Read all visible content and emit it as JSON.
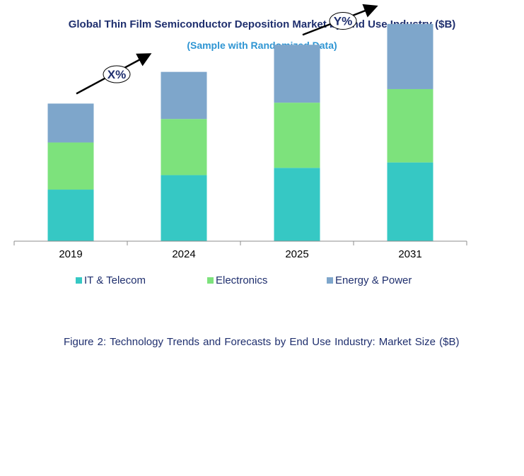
{
  "chart_data": {
    "type": "bar",
    "stacked": true,
    "title": "Global Thin Film Semiconductor Deposition Market by End Use Industry ($B)",
    "subtitle": "(Sample with Randomized Data)",
    "categories": [
      "2019",
      "2024",
      "2025",
      "2031"
    ],
    "series": [
      {
        "name": "IT & Telecom",
        "color": "#36c8c4",
        "values": [
          57,
          73,
          81,
          87
        ]
      },
      {
        "name": "Electronics",
        "color": "#7de27c",
        "values": [
          52,
          62,
          72,
          81
        ]
      },
      {
        "name": "Energy & Power",
        "color": "#7ea6cb",
        "values": [
          43,
          52,
          64,
          72
        ]
      }
    ],
    "ylim": [
      0,
      250
    ],
    "grid": false,
    "legend_position": "bottom",
    "annotations": [
      {
        "label": "X%",
        "from": "2019",
        "to": "2024"
      },
      {
        "label": "Y%",
        "from": "2025",
        "to": "2031"
      }
    ]
  },
  "caption": "Figure 2: Technology Trends and Forecasts by End Use Industry:  Market Size ($B)"
}
